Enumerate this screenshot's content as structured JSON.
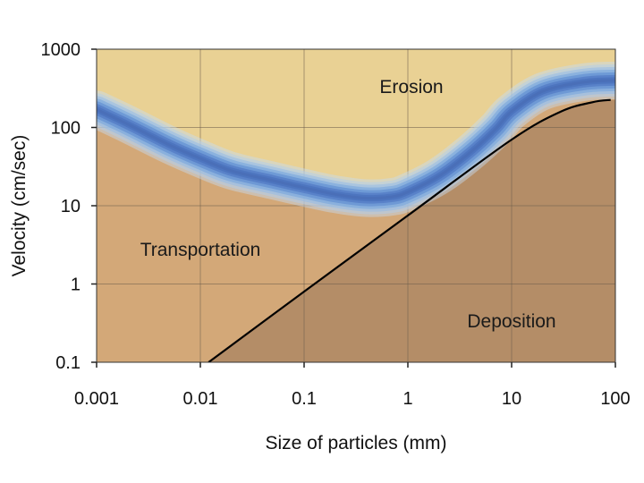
{
  "chart_data": {
    "type": "line",
    "title": "",
    "xlabel": "Size of particles (mm)",
    "ylabel": "Velocity (cm/sec)",
    "x_scale": "log",
    "y_scale": "log",
    "xlim": [
      0.001,
      100
    ],
    "ylim": [
      0.1,
      1000
    ],
    "x_ticks": [
      "0.001",
      "0.01",
      "0.1",
      "1",
      "10",
      "100"
    ],
    "y_ticks": [
      "0.1",
      "1",
      "10",
      "100",
      "1000"
    ],
    "grid": true,
    "regions": {
      "erosion": "Erosion",
      "transportation": "Transportation",
      "deposition": "Deposition"
    },
    "series": [
      {
        "style": "blue band",
        "x": [
          0.001,
          0.002,
          0.005,
          0.01,
          0.02,
          0.05,
          0.1,
          0.2,
          0.4,
          0.7,
          1,
          2,
          4,
          7,
          10,
          20,
          50,
          100
        ],
        "y": [
          170,
          110,
          60,
          40,
          28,
          21,
          17,
          14,
          12.5,
          13,
          15,
          24,
          48,
          95,
          160,
          290,
          380,
          400
        ]
      },
      {
        "style": "black line",
        "x": [
          0.012,
          0.1,
          1,
          10,
          30,
          60,
          90
        ],
        "y": [
          0.1,
          0.8,
          7.5,
          70,
          160,
          210,
          225
        ]
      }
    ],
    "colors": {
      "erosion": "#e9d194",
      "transportation": "#d3a878",
      "deposition": "#b48d67",
      "band": "#4f7fc6",
      "grid": "#6f5e4c"
    }
  }
}
